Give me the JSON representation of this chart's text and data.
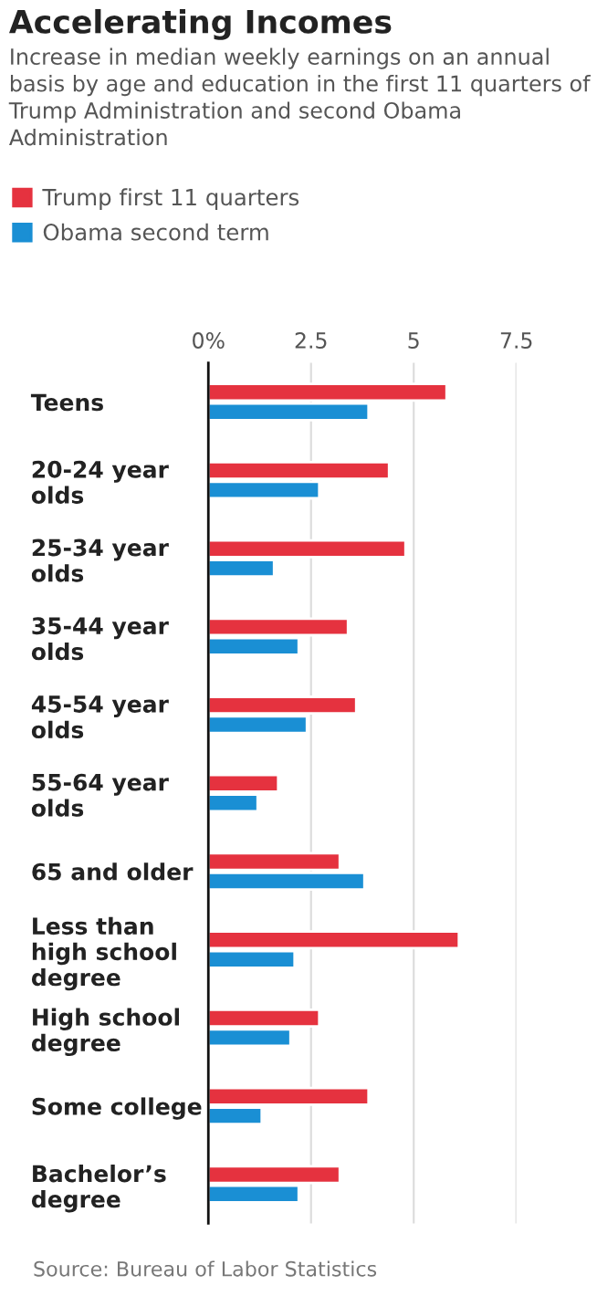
{
  "chart_data": {
    "type": "bar",
    "orientation": "horizontal",
    "title": "Accelerating Incomes",
    "subtitle": "Increase in median weekly earnings on an annual basis by age and education in the first 11 quarters of Trump Administration and second Obama Administration",
    "categories": [
      "Teens",
      "20-24 year olds",
      "25-34 year olds",
      "35-44 year olds",
      "45-54 year olds",
      "55-64 year olds",
      "65 and older",
      "Less than high school degree",
      "High school degree",
      "Some college",
      "Bachelor’s degree"
    ],
    "series": [
      {
        "name": "Trump first 11 quarters",
        "color": "#e5323f",
        "values": [
          5.8,
          4.4,
          4.8,
          3.4,
          3.6,
          1.7,
          3.2,
          6.1,
          2.7,
          3.9,
          3.2
        ]
      },
      {
        "name": "Obama second term",
        "color": "#1a8fd4",
        "values": [
          3.9,
          2.7,
          1.6,
          2.2,
          2.4,
          1.2,
          3.8,
          2.1,
          2.0,
          1.3,
          2.2
        ]
      }
    ],
    "xlim": [
      0,
      7.5
    ],
    "xticks": [
      {
        "value": 0,
        "label": "0%"
      },
      2.5,
      5,
      7.5
    ],
    "grid": "x",
    "legend": "top left",
    "annotations": [
      "Source: Bureau of Labor Statistics"
    ]
  }
}
